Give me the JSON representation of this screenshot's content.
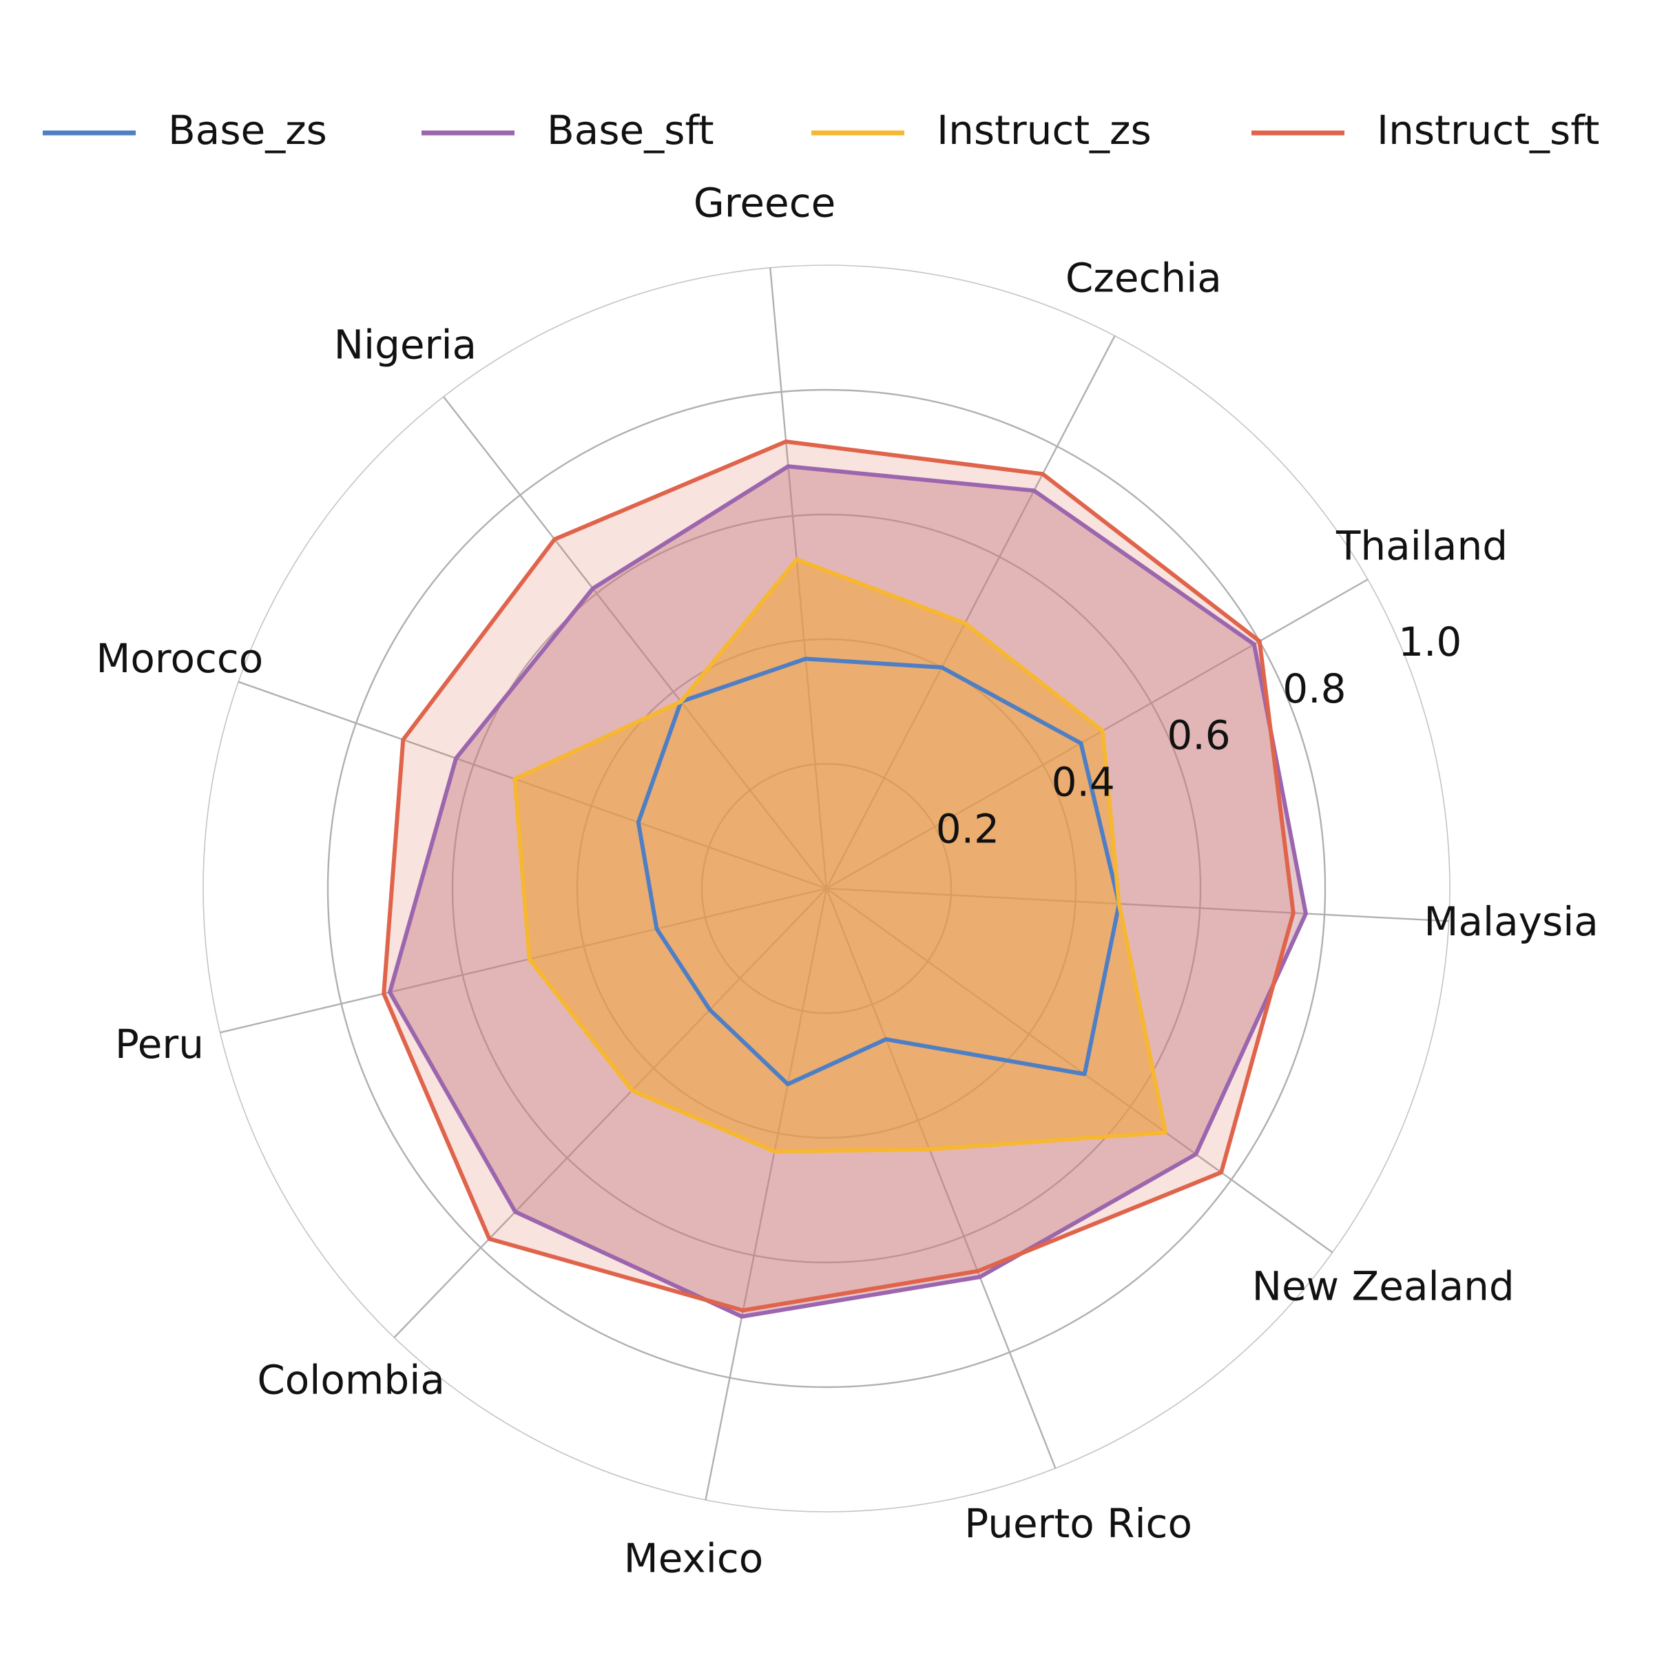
{
  "chart_data": {
    "type": "radar",
    "title": "",
    "categories": [
      "Malaysia",
      "Thailand",
      "Czechia",
      "Greece",
      "Nigeria",
      "Morocco",
      "Peru",
      "Colombia",
      "Mexico",
      "Puerto Rico",
      "New Zealand"
    ],
    "radial_ticks": [
      0.2,
      0.4,
      0.6,
      0.8,
      1.0
    ],
    "radial_tick_labels": [
      "0.2",
      "0.4",
      "0.6",
      "0.8",
      "1.0"
    ],
    "rlim": [
      0,
      1.0
    ],
    "grid": true,
    "legend_position": "top",
    "series": [
      {
        "name": "Base_zs",
        "color": "#4E7FC4",
        "fill": false,
        "values": [
          0.47,
          0.47,
          0.4,
          0.37,
          0.38,
          0.32,
          0.28,
          0.27,
          0.32,
          0.26,
          0.51
        ]
      },
      {
        "name": "Base_sft",
        "color": "#9B66AE",
        "fill": true,
        "fill_color": "#C08593",
        "fill_opacity": 0.45,
        "values": [
          0.77,
          0.79,
          0.72,
          0.68,
          0.61,
          0.63,
          0.72,
          0.72,
          0.7,
          0.67,
          0.73
        ]
      },
      {
        "name": "Instruct_zs",
        "color": "#F7B731",
        "fill": true,
        "fill_color": "#F7B731",
        "fill_opacity": 0.55,
        "values": [
          0.47,
          0.51,
          0.48,
          0.53,
          0.38,
          0.53,
          0.49,
          0.45,
          0.43,
          0.45,
          0.67
        ]
      },
      {
        "name": "Instruct_sft",
        "color": "#DF644B",
        "fill": true,
        "fill_color": "#DF644B",
        "fill_opacity": 0.18,
        "values": [
          0.75,
          0.8,
          0.75,
          0.72,
          0.71,
          0.72,
          0.73,
          0.78,
          0.69,
          0.66,
          0.78
        ]
      }
    ]
  }
}
